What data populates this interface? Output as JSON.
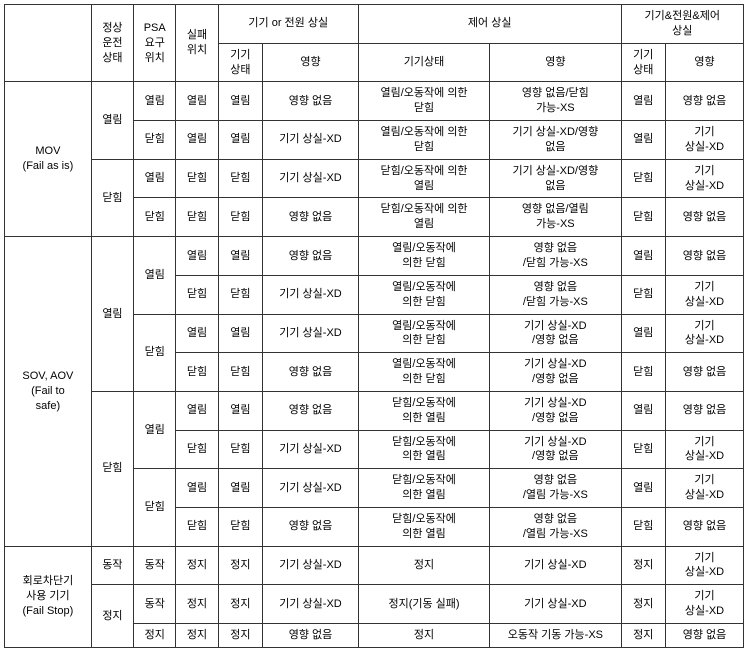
{
  "headers": {
    "blank": "",
    "col1": "정상\n운전\n상태",
    "col2": "PSA\n요구\n위치",
    "col3": "실패\n위치",
    "group1": "기기 or 전원 상실",
    "group2": "제어 상실",
    "group3": "기기&전원&제어\n상실",
    "sub1": "기기\n상태",
    "sub2": "영향",
    "sub3": "기기상태",
    "sub4": "영향",
    "sub5": "기기\n상태",
    "sub6": "영향"
  },
  "row_labels": {
    "mov": "MOV\n(Fail as is)",
    "sov": "SOV, AOV\n(Fail to\nsafe)",
    "breaker": "회로차단기\n사용 기기\n(Fail Stop)"
  },
  "text": {
    "open": "열림",
    "close": "닫힘",
    "run": "동작",
    "stop": "정지",
    "no_effect": "영향 없음",
    "loss_xd": "기기 상실-XD",
    "loss_xd_2line": "기기\n상실-XD",
    "mov_f1": "열림/오동작에 의한\n닫힘",
    "mov_g1": "영향 없음/닫힘\n가능-XS",
    "mov_f2": "열림/오동작에 의한\n닫힘",
    "mov_g2": "기기 상실-XD/영향\n없음",
    "mov_f3": "닫힘/오동작에 의한\n열림",
    "mov_g3": "기기 상실-XD/영향\n없음",
    "mov_f4": "닫힘/오동작에 의한\n열림",
    "mov_g4": "영향 없음/열림\n가능-XS",
    "sov_f1": "열림/오동작에\n의한 닫힘",
    "sov_g1": "영향 없음\n/닫힘 가능-XS",
    "sov_f2": "열림/오동작에\n의한 닫힘",
    "sov_g2": "영향 없음\n/닫힘 가능-XS",
    "sov_f3": "열림/오동작에\n의한 닫힘",
    "sov_g3": "기기 상실-XD\n/영향 없음",
    "sov_f4": "열림/오동작에\n의한 닫힘",
    "sov_g4": "기기 상실-XD\n/영향 없음",
    "sov_f5": "닫힘/오동작에\n의한 열림",
    "sov_g5": "기기 상실-XD\n/영향 없음",
    "sov_f6": "닫힘/오동작에\n의한 열림",
    "sov_g6": "기기 상실-XD\n/영향 없음",
    "sov_f7": "닫힘/오동작에\n의한 열림",
    "sov_g7": "영향 없음\n/열림 가능-XS",
    "sov_f8": "닫힘/오동작에\n의한 열림",
    "sov_g8": "영향 없음\n/열림 가능-XS",
    "brk_f1": "정지",
    "brk_g1": "기기 상실-XD",
    "brk_f2": "정지(기동 실패)",
    "brk_g2": "기기 상실-XD",
    "brk_f3": "정지",
    "brk_g3": "오동작 기동 가능-XS"
  }
}
